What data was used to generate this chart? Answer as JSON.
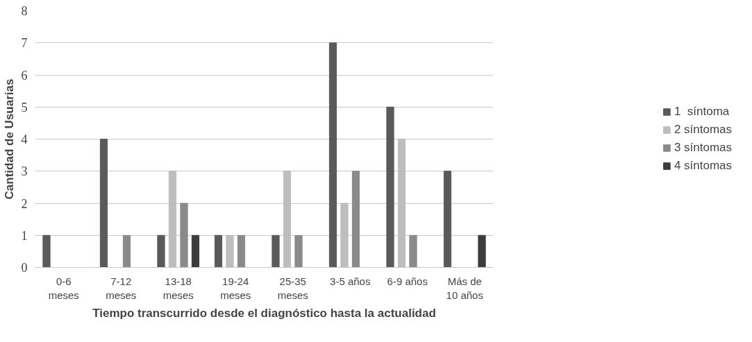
{
  "chart_data": {
    "type": "bar",
    "xlabel": "Tiempo transcurrido desde el diagnóstico hasta la actualidad",
    "ylabel": "Cantidad de Usuarias",
    "categories": [
      "0-6\nmeses",
      "7-12\nmeses",
      "13-18\nmeses",
      "19-24\nmeses",
      "25-35\nmeses",
      "3-5 años",
      "6-9 años",
      "Más de\n10 años"
    ],
    "series": [
      {
        "name": "1  síntoma",
        "color": "#5a5a5a",
        "values": [
          1,
          4,
          1,
          1,
          1,
          7,
          5,
          3
        ]
      },
      {
        "name": "2 síntomas",
        "color": "#bdbdbd",
        "values": [
          0,
          0,
          3,
          1,
          3,
          2,
          4,
          0
        ]
      },
      {
        "name": "3 síntomas",
        "color": "#8a8a8a",
        "values": [
          0,
          1,
          2,
          1,
          1,
          3,
          1,
          0
        ]
      },
      {
        "name": "4 síntomas",
        "color": "#3c3c3c",
        "values": [
          0,
          0,
          1,
          0,
          0,
          0,
          0,
          1
        ]
      }
    ],
    "ylim": [
      0,
      8
    ],
    "yticks": [
      0,
      1,
      2,
      3,
      4,
      5,
      6,
      7,
      8
    ],
    "grid": "y",
    "legend": "right"
  }
}
